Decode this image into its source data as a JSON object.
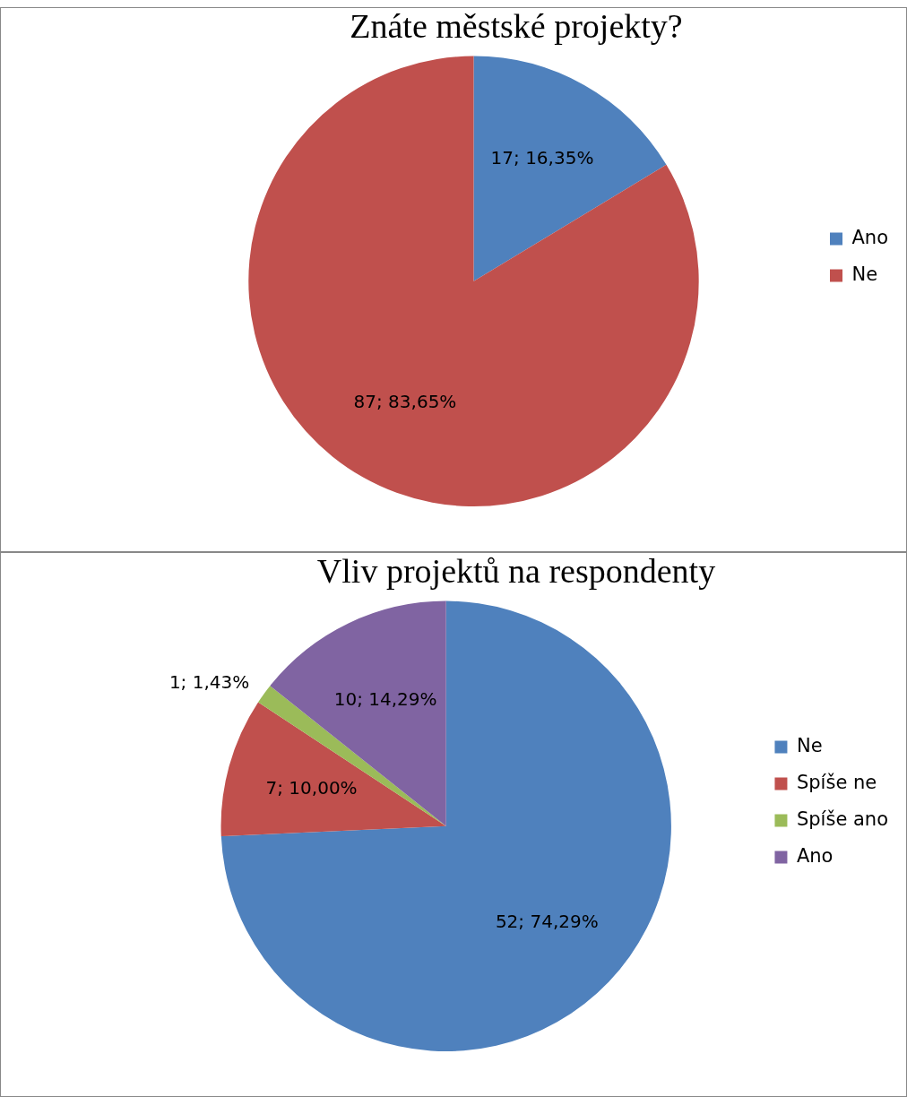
{
  "chart_data": [
    {
      "type": "pie",
      "title": "Znáte městské projekty?",
      "categories": [
        "Ano",
        "Ne"
      ],
      "values": [
        17,
        87
      ],
      "colors": [
        "#4f81bd",
        "#c0504d"
      ],
      "value_labels": [
        "17; 16,35%",
        "87; 83,65%"
      ],
      "legend": "right"
    },
    {
      "type": "pie",
      "title": "Vliv projektů na respondenty",
      "categories": [
        "Ne",
        "Spíše ne",
        "Spíše ano",
        "Ano"
      ],
      "values": [
        52,
        7,
        1,
        10
      ],
      "colors": [
        "#4f81bd",
        "#c0504d",
        "#9bbb59",
        "#8064a2"
      ],
      "value_labels": [
        "52; 74,29%",
        "7; 10,00%",
        "1; 1,43%",
        "10; 14,29%"
      ],
      "legend": "right"
    }
  ]
}
